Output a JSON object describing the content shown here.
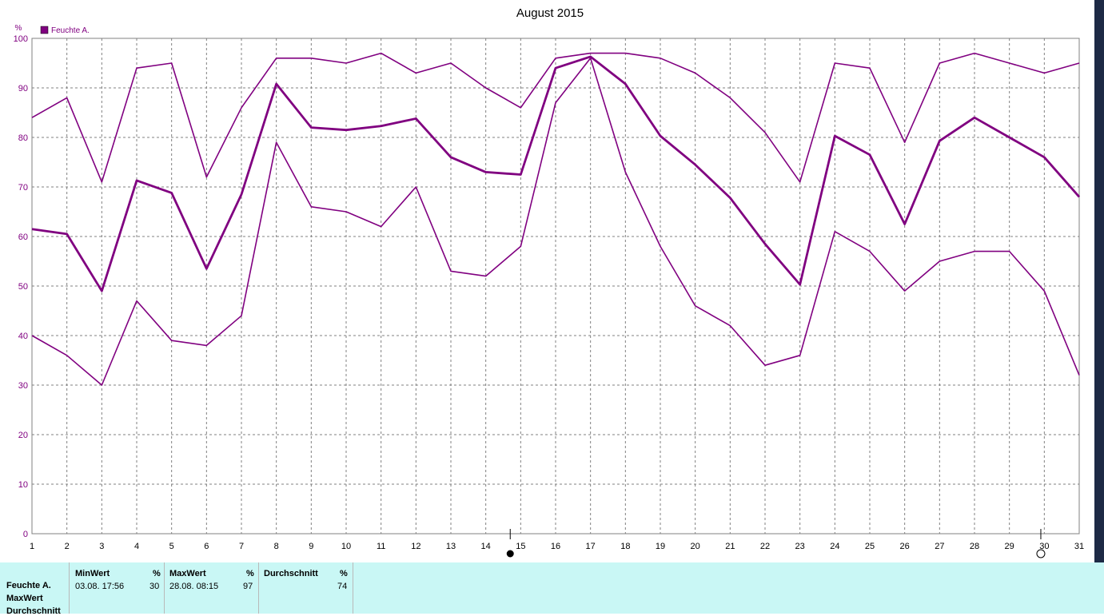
{
  "chart_data": {
    "type": "line",
    "title": "August 2015",
    "ylabel": "%",
    "xlabel": "",
    "ylim": [
      0,
      100
    ],
    "xlim": [
      1,
      31
    ],
    "yticks": [
      0,
      10,
      20,
      30,
      40,
      50,
      60,
      70,
      80,
      90,
      100
    ],
    "categories": [
      "1",
      "2",
      "3",
      "4",
      "5",
      "6",
      "7",
      "8",
      "9",
      "10",
      "11",
      "12",
      "13",
      "14",
      "15",
      "16",
      "17",
      "18",
      "19",
      "20",
      "21",
      "22",
      "23",
      "24",
      "25",
      "26",
      "27",
      "28",
      "29",
      "30",
      "31"
    ],
    "grid": true,
    "legend": {
      "position": "top-left",
      "entries": [
        "Feuchte A."
      ]
    },
    "color": "#800080",
    "series": [
      {
        "name": "Feuchte A.",
        "role": "max",
        "values": [
          84,
          88,
          71,
          94,
          95,
          72,
          86,
          96,
          96,
          95,
          97,
          93,
          95,
          90,
          86,
          96,
          97,
          97,
          96,
          93,
          88,
          81,
          71,
          95,
          94,
          79,
          95,
          97,
          95,
          93,
          95
        ]
      },
      {
        "name": "Feuchte A.",
        "role": "avg",
        "values": [
          61.5,
          60.5,
          49,
          71.3,
          68.8,
          53.5,
          68.5,
          90.8,
          82,
          81.5,
          82.3,
          83.8,
          76,
          73,
          72.5,
          94,
          96.3,
          90.8,
          80.3,
          74.5,
          67.8,
          58.5,
          50.3,
          80.3,
          76.5,
          62.5,
          79.3,
          84,
          80,
          76,
          68
        ]
      },
      {
        "name": "Feuchte A.",
        "role": "min",
        "values": [
          40,
          36,
          30,
          47,
          39,
          38,
          44,
          79,
          66,
          65,
          62,
          70,
          53,
          52,
          58,
          87,
          96,
          73,
          58,
          46,
          42,
          34,
          36,
          61,
          57,
          49,
          55,
          57,
          57,
          49,
          32
        ]
      }
    ],
    "moon_markers": [
      {
        "day": 14.7,
        "phase": "full"
      },
      {
        "day": 29.9,
        "phase": "new"
      }
    ]
  },
  "stats": {
    "row_labels": [
      "Feuchte A.",
      "MaxWert",
      "Durchschnitt"
    ],
    "columns": [
      {
        "header": "MinWert",
        "unit": "%",
        "time": "03.08.  17:56",
        "value": "30"
      },
      {
        "header": "MaxWert",
        "unit": "%",
        "time": "28.08.  08:15",
        "value": "97"
      },
      {
        "header": "Durchschnitt",
        "unit": "%",
        "time": "",
        "value": "74"
      }
    ]
  }
}
